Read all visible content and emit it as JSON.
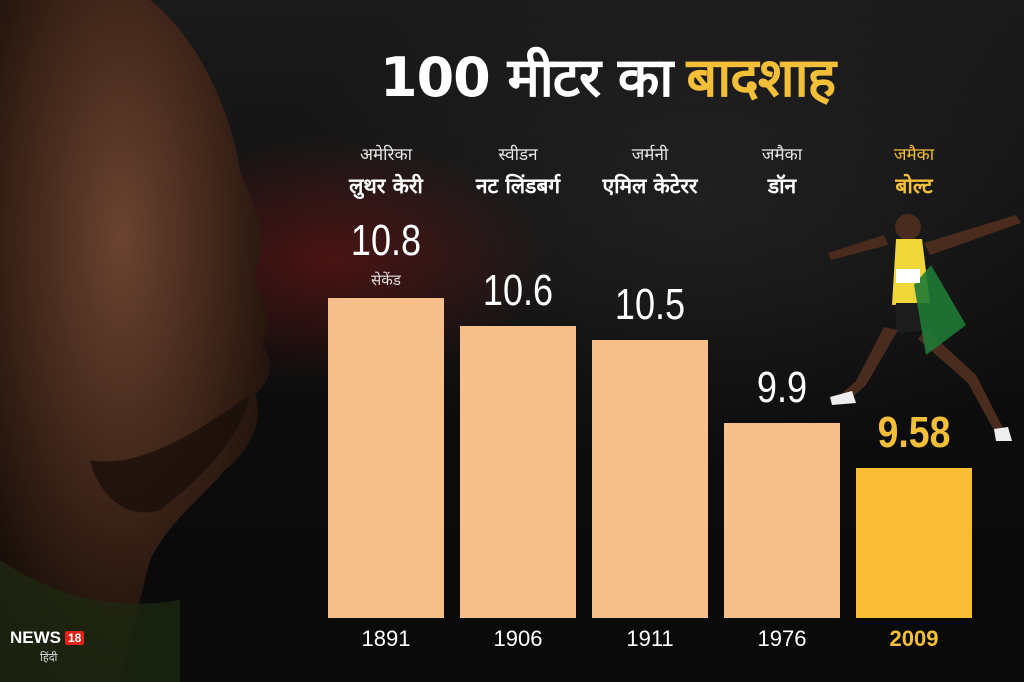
{
  "chart_data": {
    "type": "bar",
    "title_main": "100 मीटर का",
    "title_highlight": "बादशाह",
    "unit_label": "सेकेंड",
    "categories": [
      "1891",
      "1906",
      "1911",
      "1976",
      "2009"
    ],
    "countries": [
      "अमेरिका",
      "स्वीडन",
      "जर्मनी",
      "जमैका",
      "जमैका"
    ],
    "athletes": [
      "लुथर केरी",
      "नट लिंडबर्ग",
      "एमिल केटेरर",
      "डॉन",
      "बोल्ट"
    ],
    "values": [
      10.8,
      10.6,
      10.5,
      9.9,
      9.58
    ],
    "value_labels": [
      "10.8",
      "10.6",
      "10.5",
      "9.9",
      "9.58"
    ],
    "highlight_index": 4,
    "bar_color": "#f7c08a",
    "highlight_color": "#f8bd34",
    "ylim": [
      8.5,
      10.8
    ],
    "grid": false,
    "legend": "none"
  },
  "branding": {
    "logo_text": "NEWS",
    "logo_number": "18",
    "logo_sub": "हिंदी"
  }
}
